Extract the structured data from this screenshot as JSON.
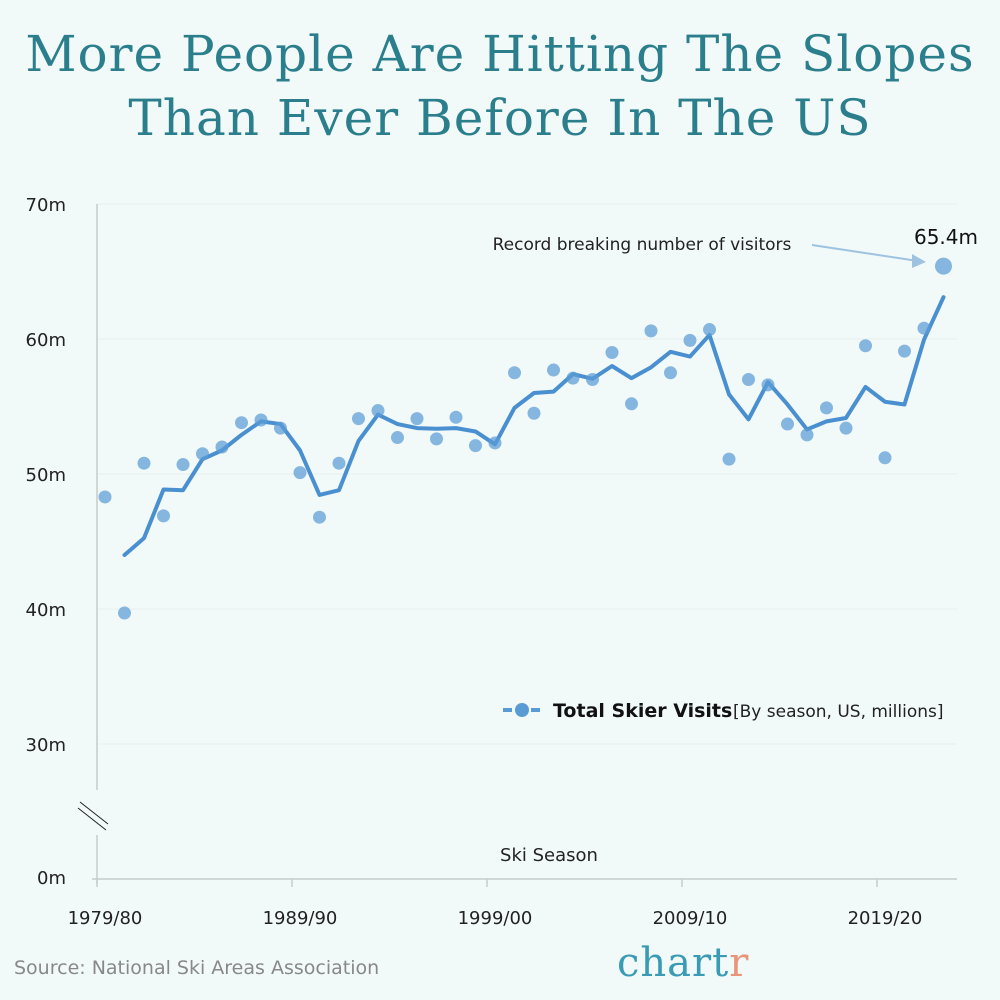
{
  "chart_data": {
    "type": "scatter+line",
    "title": "More People Are Hitting The Slopes Than Ever Before In The US",
    "xlabel": "Ski Season",
    "ylabel": "",
    "x_tick_labels": [
      "1979/80",
      "1989/90",
      "1999/00",
      "2009/10",
      "2019/20"
    ],
    "y_tick_labels": [
      "0m",
      "30m",
      "40m",
      "50m",
      "60m",
      "70m"
    ],
    "ylim": [
      30,
      70
    ],
    "y_axis_break": true,
    "grid": "horizontal",
    "legend": {
      "position": "bottom-right",
      "name": "Total Skier Visits",
      "note": "[By season, US, millions]"
    },
    "seasons_start": 1979,
    "series": [
      {
        "name": "Total Skier Visits",
        "kind": "points",
        "color": "#5b9bd5",
        "values": [
          48.3,
          39.7,
          50.8,
          46.9,
          50.7,
          51.5,
          52.0,
          53.8,
          54.0,
          53.4,
          50.1,
          46.8,
          50.8,
          54.1,
          54.7,
          52.7,
          54.1,
          52.6,
          54.2,
          52.1,
          52.3,
          57.5,
          54.5,
          57.7,
          57.1,
          57.0,
          59.0,
          55.2,
          60.6,
          57.5,
          59.9,
          60.7,
          51.1,
          57.0,
          56.6,
          53.7,
          52.9,
          54.9,
          53.4,
          59.5,
          51.2,
          59.1,
          60.8,
          65.4
        ]
      },
      {
        "kind": "line",
        "smoothing": "2-season moving average",
        "color": "#4a90d0"
      }
    ],
    "annotation": {
      "text": "Record breaking number of visitors",
      "value_label": "65.4m"
    }
  },
  "footer": {
    "source": "Source: National Ski Areas Association",
    "logo_main": "chart",
    "logo_accent": "r"
  }
}
